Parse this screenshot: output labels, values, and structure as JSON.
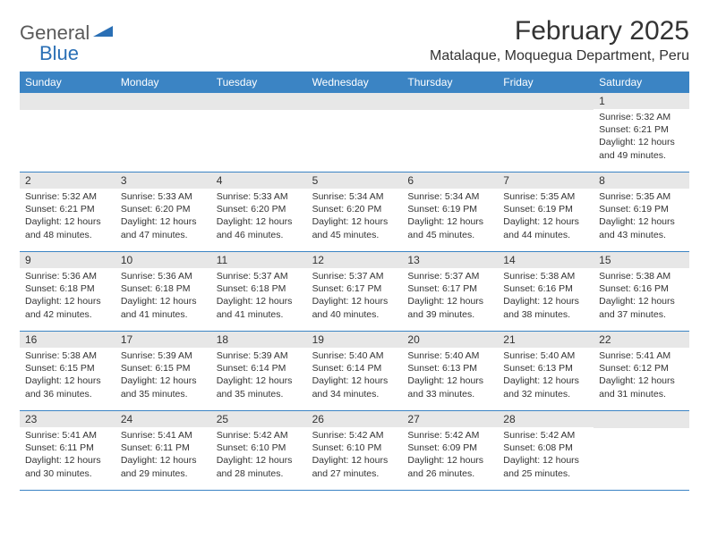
{
  "logo": {
    "general": "General",
    "blue": "Blue"
  },
  "title": "February 2025",
  "location": "Matalaque, Moquegua Department, Peru",
  "colors": {
    "header_bg": "#3b84c4",
    "header_text": "#ffffff",
    "daynum_bg": "#e7e7e7",
    "border": "#3b84c4",
    "text": "#333333",
    "logo_gray": "#5a5a5a",
    "logo_blue": "#2a6fb5"
  },
  "weekdays": [
    "Sunday",
    "Monday",
    "Tuesday",
    "Wednesday",
    "Thursday",
    "Friday",
    "Saturday"
  ],
  "weeks": [
    [
      null,
      null,
      null,
      null,
      null,
      null,
      {
        "n": "1",
        "sr": "5:32 AM",
        "ss": "6:21 PM",
        "dl": "12 hours and 49 minutes."
      }
    ],
    [
      {
        "n": "2",
        "sr": "5:32 AM",
        "ss": "6:21 PM",
        "dl": "12 hours and 48 minutes."
      },
      {
        "n": "3",
        "sr": "5:33 AM",
        "ss": "6:20 PM",
        "dl": "12 hours and 47 minutes."
      },
      {
        "n": "4",
        "sr": "5:33 AM",
        "ss": "6:20 PM",
        "dl": "12 hours and 46 minutes."
      },
      {
        "n": "5",
        "sr": "5:34 AM",
        "ss": "6:20 PM",
        "dl": "12 hours and 45 minutes."
      },
      {
        "n": "6",
        "sr": "5:34 AM",
        "ss": "6:19 PM",
        "dl": "12 hours and 45 minutes."
      },
      {
        "n": "7",
        "sr": "5:35 AM",
        "ss": "6:19 PM",
        "dl": "12 hours and 44 minutes."
      },
      {
        "n": "8",
        "sr": "5:35 AM",
        "ss": "6:19 PM",
        "dl": "12 hours and 43 minutes."
      }
    ],
    [
      {
        "n": "9",
        "sr": "5:36 AM",
        "ss": "6:18 PM",
        "dl": "12 hours and 42 minutes."
      },
      {
        "n": "10",
        "sr": "5:36 AM",
        "ss": "6:18 PM",
        "dl": "12 hours and 41 minutes."
      },
      {
        "n": "11",
        "sr": "5:37 AM",
        "ss": "6:18 PM",
        "dl": "12 hours and 41 minutes."
      },
      {
        "n": "12",
        "sr": "5:37 AM",
        "ss": "6:17 PM",
        "dl": "12 hours and 40 minutes."
      },
      {
        "n": "13",
        "sr": "5:37 AM",
        "ss": "6:17 PM",
        "dl": "12 hours and 39 minutes."
      },
      {
        "n": "14",
        "sr": "5:38 AM",
        "ss": "6:16 PM",
        "dl": "12 hours and 38 minutes."
      },
      {
        "n": "15",
        "sr": "5:38 AM",
        "ss": "6:16 PM",
        "dl": "12 hours and 37 minutes."
      }
    ],
    [
      {
        "n": "16",
        "sr": "5:38 AM",
        "ss": "6:15 PM",
        "dl": "12 hours and 36 minutes."
      },
      {
        "n": "17",
        "sr": "5:39 AM",
        "ss": "6:15 PM",
        "dl": "12 hours and 35 minutes."
      },
      {
        "n": "18",
        "sr": "5:39 AM",
        "ss": "6:14 PM",
        "dl": "12 hours and 35 minutes."
      },
      {
        "n": "19",
        "sr": "5:40 AM",
        "ss": "6:14 PM",
        "dl": "12 hours and 34 minutes."
      },
      {
        "n": "20",
        "sr": "5:40 AM",
        "ss": "6:13 PM",
        "dl": "12 hours and 33 minutes."
      },
      {
        "n": "21",
        "sr": "5:40 AM",
        "ss": "6:13 PM",
        "dl": "12 hours and 32 minutes."
      },
      {
        "n": "22",
        "sr": "5:41 AM",
        "ss": "6:12 PM",
        "dl": "12 hours and 31 minutes."
      }
    ],
    [
      {
        "n": "23",
        "sr": "5:41 AM",
        "ss": "6:11 PM",
        "dl": "12 hours and 30 minutes."
      },
      {
        "n": "24",
        "sr": "5:41 AM",
        "ss": "6:11 PM",
        "dl": "12 hours and 29 minutes."
      },
      {
        "n": "25",
        "sr": "5:42 AM",
        "ss": "6:10 PM",
        "dl": "12 hours and 28 minutes."
      },
      {
        "n": "26",
        "sr": "5:42 AM",
        "ss": "6:10 PM",
        "dl": "12 hours and 27 minutes."
      },
      {
        "n": "27",
        "sr": "5:42 AM",
        "ss": "6:09 PM",
        "dl": "12 hours and 26 minutes."
      },
      {
        "n": "28",
        "sr": "5:42 AM",
        "ss": "6:08 PM",
        "dl": "12 hours and 25 minutes."
      },
      null
    ]
  ],
  "labels": {
    "sunrise": "Sunrise: ",
    "sunset": "Sunset: ",
    "daylight": "Daylight: "
  }
}
